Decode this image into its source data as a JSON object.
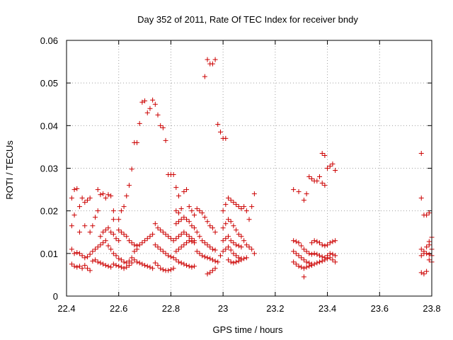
{
  "chart_data": {
    "type": "scatter",
    "title": "Day 352 of 2011, Rate Of TEC Index for receiver bndy",
    "xlabel": "GPS time / hours",
    "ylabel": "ROTI / TECUs",
    "xlim": [
      22.4,
      23.8
    ],
    "ylim": [
      0,
      0.06
    ],
    "x_ticks": [
      "22.4",
      "22.6",
      "22.8",
      "23",
      "23.2",
      "23.4",
      "23.6",
      "23.8"
    ],
    "y_ticks": [
      "0",
      "0.01",
      "0.02",
      "0.03",
      "0.04",
      "0.05",
      "0.06"
    ],
    "grid": true,
    "marker": "+",
    "series_color": "#cc0000",
    "points": [
      [
        22.42,
        0.023
      ],
      [
        22.43,
        0.025
      ],
      [
        22.44,
        0.0252
      ],
      [
        22.45,
        0.021
      ],
      [
        22.46,
        0.023
      ],
      [
        22.47,
        0.022
      ],
      [
        22.48,
        0.0225
      ],
      [
        22.49,
        0.023
      ],
      [
        22.42,
        0.0165
      ],
      [
        22.43,
        0.019
      ],
      [
        22.45,
        0.015
      ],
      [
        22.47,
        0.0165
      ],
      [
        22.49,
        0.015
      ],
      [
        22.5,
        0.0165
      ],
      [
        22.51,
        0.0185
      ],
      [
        22.52,
        0.02
      ],
      [
        22.42,
        0.011
      ],
      [
        22.43,
        0.01
      ],
      [
        22.44,
        0.0102
      ],
      [
        22.45,
        0.01
      ],
      [
        22.46,
        0.0095
      ],
      [
        22.47,
        0.009
      ],
      [
        22.48,
        0.0092
      ],
      [
        22.49,
        0.0098
      ],
      [
        22.5,
        0.0105
      ],
      [
        22.51,
        0.011
      ],
      [
        22.52,
        0.0115
      ],
      [
        22.53,
        0.012
      ],
      [
        22.54,
        0.0125
      ],
      [
        22.55,
        0.013
      ],
      [
        22.56,
        0.0118
      ],
      [
        22.57,
        0.011
      ],
      [
        22.42,
        0.0075
      ],
      [
        22.43,
        0.007
      ],
      [
        22.44,
        0.0068
      ],
      [
        22.45,
        0.007
      ],
      [
        22.46,
        0.0065
      ],
      [
        22.47,
        0.0072
      ],
      [
        22.48,
        0.0065
      ],
      [
        22.49,
        0.006
      ],
      [
        22.5,
        0.0082
      ],
      [
        22.51,
        0.0085
      ],
      [
        22.52,
        0.008
      ],
      [
        22.53,
        0.0078
      ],
      [
        22.54,
        0.0075
      ],
      [
        22.55,
        0.0072
      ],
      [
        22.56,
        0.007
      ],
      [
        22.57,
        0.0068
      ],
      [
        22.52,
        0.025
      ],
      [
        22.53,
        0.0238
      ],
      [
        22.54,
        0.024
      ],
      [
        22.55,
        0.023
      ],
      [
        22.56,
        0.0238
      ],
      [
        22.57,
        0.0235
      ],
      [
        22.58,
        0.02
      ],
      [
        22.58,
        0.018
      ],
      [
        22.53,
        0.014
      ],
      [
        22.54,
        0.015
      ],
      [
        22.55,
        0.0155
      ],
      [
        22.56,
        0.016
      ],
      [
        22.57,
        0.015
      ],
      [
        22.58,
        0.0145
      ],
      [
        22.59,
        0.0135
      ],
      [
        22.6,
        0.013
      ],
      [
        22.58,
        0.01
      ],
      [
        22.59,
        0.0095
      ],
      [
        22.6,
        0.0088
      ],
      [
        22.61,
        0.0085
      ],
      [
        22.62,
        0.008
      ],
      [
        22.63,
        0.0078
      ],
      [
        22.64,
        0.0082
      ],
      [
        22.65,
        0.009
      ],
      [
        22.58,
        0.0075
      ],
      [
        22.59,
        0.0072
      ],
      [
        22.6,
        0.007
      ],
      [
        22.61,
        0.0068
      ],
      [
        22.62,
        0.0065
      ],
      [
        22.63,
        0.0068
      ],
      [
        22.64,
        0.0072
      ],
      [
        22.65,
        0.0078
      ],
      [
        22.6,
        0.018
      ],
      [
        22.61,
        0.02
      ],
      [
        22.62,
        0.021
      ],
      [
        22.63,
        0.0235
      ],
      [
        22.64,
        0.026
      ],
      [
        22.65,
        0.0298
      ],
      [
        22.66,
        0.036
      ],
      [
        22.67,
        0.036
      ],
      [
        22.6,
        0.0155
      ],
      [
        22.61,
        0.015
      ],
      [
        22.62,
        0.0145
      ],
      [
        22.63,
        0.014
      ],
      [
        22.64,
        0.013
      ],
      [
        22.65,
        0.0125
      ],
      [
        22.66,
        0.012
      ],
      [
        22.67,
        0.0118
      ],
      [
        22.66,
        0.0105
      ],
      [
        22.67,
        0.011
      ],
      [
        22.68,
        0.012
      ],
      [
        22.69,
        0.0125
      ],
      [
        22.7,
        0.013
      ],
      [
        22.71,
        0.0135
      ],
      [
        22.72,
        0.014
      ],
      [
        22.73,
        0.0145
      ],
      [
        22.66,
        0.0085
      ],
      [
        22.67,
        0.008
      ],
      [
        22.68,
        0.0078
      ],
      [
        22.69,
        0.0075
      ],
      [
        22.7,
        0.0072
      ],
      [
        22.71,
        0.007
      ],
      [
        22.72,
        0.0068
      ],
      [
        22.73,
        0.0065
      ],
      [
        22.68,
        0.0405
      ],
      [
        22.69,
        0.0455
      ],
      [
        22.7,
        0.0458
      ],
      [
        22.71,
        0.043
      ],
      [
        22.72,
        0.044
      ],
      [
        22.73,
        0.046
      ],
      [
        22.74,
        0.045
      ],
      [
        22.75,
        0.0425
      ],
      [
        22.76,
        0.04
      ],
      [
        22.77,
        0.0395
      ],
      [
        22.78,
        0.0365
      ],
      [
        22.79,
        0.0285
      ],
      [
        22.8,
        0.0285
      ],
      [
        22.81,
        0.0285
      ],
      [
        22.82,
        0.0255
      ],
      [
        22.83,
        0.0235
      ],
      [
        22.74,
        0.017
      ],
      [
        22.75,
        0.016
      ],
      [
        22.76,
        0.0155
      ],
      [
        22.77,
        0.015
      ],
      [
        22.78,
        0.0145
      ],
      [
        22.79,
        0.014
      ],
      [
        22.8,
        0.0135
      ],
      [
        22.81,
        0.013
      ],
      [
        22.74,
        0.012
      ],
      [
        22.75,
        0.0115
      ],
      [
        22.76,
        0.011
      ],
      [
        22.77,
        0.0105
      ],
      [
        22.78,
        0.01
      ],
      [
        22.79,
        0.0095
      ],
      [
        22.8,
        0.0092
      ],
      [
        22.81,
        0.009
      ],
      [
        22.74,
        0.0078
      ],
      [
        22.75,
        0.0072
      ],
      [
        22.76,
        0.0065
      ],
      [
        22.77,
        0.0062
      ],
      [
        22.78,
        0.006
      ],
      [
        22.79,
        0.006
      ],
      [
        22.8,
        0.0062
      ],
      [
        22.81,
        0.0065
      ],
      [
        22.82,
        0.02
      ],
      [
        22.83,
        0.0195
      ],
      [
        22.84,
        0.0205
      ],
      [
        22.85,
        0.0245
      ],
      [
        22.86,
        0.025
      ],
      [
        22.87,
        0.021
      ],
      [
        22.88,
        0.02
      ],
      [
        22.89,
        0.019
      ],
      [
        22.82,
        0.017
      ],
      [
        22.83,
        0.0175
      ],
      [
        22.84,
        0.018
      ],
      [
        22.85,
        0.0185
      ],
      [
        22.86,
        0.018
      ],
      [
        22.87,
        0.0175
      ],
      [
        22.88,
        0.0165
      ],
      [
        22.89,
        0.016
      ],
      [
        22.82,
        0.0135
      ],
      [
        22.83,
        0.014
      ],
      [
        22.84,
        0.0145
      ],
      [
        22.85,
        0.015
      ],
      [
        22.86,
        0.0145
      ],
      [
        22.87,
        0.014
      ],
      [
        22.88,
        0.0135
      ],
      [
        22.89,
        0.013
      ],
      [
        22.82,
        0.0105
      ],
      [
        22.83,
        0.011
      ],
      [
        22.84,
        0.0115
      ],
      [
        22.85,
        0.012
      ],
      [
        22.86,
        0.0125
      ],
      [
        22.87,
        0.013
      ],
      [
        22.88,
        0.0128
      ],
      [
        22.89,
        0.0125
      ],
      [
        22.82,
        0.0085
      ],
      [
        22.83,
        0.008
      ],
      [
        22.84,
        0.0078
      ],
      [
        22.85,
        0.0075
      ],
      [
        22.86,
        0.0072
      ],
      [
        22.87,
        0.007
      ],
      [
        22.88,
        0.0068
      ],
      [
        22.89,
        0.007
      ],
      [
        22.9,
        0.0205
      ],
      [
        22.91,
        0.02
      ],
      [
        22.92,
        0.0195
      ],
      [
        22.93,
        0.0185
      ],
      [
        22.94,
        0.0175
      ],
      [
        22.95,
        0.0165
      ],
      [
        22.96,
        0.016
      ],
      [
        22.97,
        0.015
      ],
      [
        22.9,
        0.015
      ],
      [
        22.91,
        0.014
      ],
      [
        22.92,
        0.013
      ],
      [
        22.93,
        0.0125
      ],
      [
        22.94,
        0.012
      ],
      [
        22.95,
        0.0115
      ],
      [
        22.96,
        0.011
      ],
      [
        22.97,
        0.0108
      ],
      [
        22.9,
        0.0105
      ],
      [
        22.91,
        0.01
      ],
      [
        22.92,
        0.0095
      ],
      [
        22.93,
        0.0092
      ],
      [
        22.94,
        0.009
      ],
      [
        22.95,
        0.0088
      ],
      [
        22.96,
        0.0085
      ],
      [
        22.97,
        0.0082
      ],
      [
        22.93,
        0.0515
      ],
      [
        22.94,
        0.0555
      ],
      [
        22.95,
        0.0545
      ],
      [
        22.96,
        0.0545
      ],
      [
        22.97,
        0.0555
      ],
      [
        22.98,
        0.0403
      ],
      [
        22.99,
        0.0385
      ],
      [
        23.0,
        0.037
      ],
      [
        23.01,
        0.037
      ],
      [
        22.94,
        0.0052
      ],
      [
        22.95,
        0.0055
      ],
      [
        22.96,
        0.006
      ],
      [
        22.97,
        0.0065
      ],
      [
        22.98,
        0.008
      ],
      [
        22.99,
        0.0095
      ],
      [
        23.0,
        0.02
      ],
      [
        23.01,
        0.0215
      ],
      [
        23.02,
        0.023
      ],
      [
        23.03,
        0.0225
      ],
      [
        23.04,
        0.022
      ],
      [
        23.05,
        0.0215
      ],
      [
        23.06,
        0.021
      ],
      [
        23.07,
        0.0205
      ],
      [
        23.0,
        0.016
      ],
      [
        23.01,
        0.017
      ],
      [
        23.02,
        0.018
      ],
      [
        23.03,
        0.0175
      ],
      [
        23.04,
        0.0165
      ],
      [
        23.05,
        0.0155
      ],
      [
        23.06,
        0.0145
      ],
      [
        23.07,
        0.014
      ],
      [
        23.0,
        0.013
      ],
      [
        23.01,
        0.0135
      ],
      [
        23.02,
        0.014
      ],
      [
        23.03,
        0.013
      ],
      [
        23.04,
        0.0125
      ],
      [
        23.05,
        0.012
      ],
      [
        23.06,
        0.0118
      ],
      [
        23.07,
        0.0115
      ],
      [
        23.0,
        0.0105
      ],
      [
        23.01,
        0.011
      ],
      [
        23.02,
        0.0115
      ],
      [
        23.03,
        0.0108
      ],
      [
        23.04,
        0.01
      ],
      [
        23.05,
        0.0095
      ],
      [
        23.06,
        0.009
      ],
      [
        23.07,
        0.0088
      ],
      [
        23.02,
        0.0085
      ],
      [
        23.03,
        0.008
      ],
      [
        23.04,
        0.0078
      ],
      [
        23.05,
        0.008
      ],
      [
        23.06,
        0.0082
      ],
      [
        23.07,
        0.0085
      ],
      [
        23.08,
        0.0088
      ],
      [
        23.09,
        0.009
      ],
      [
        23.08,
        0.021
      ],
      [
        23.09,
        0.02
      ],
      [
        23.1,
        0.018
      ],
      [
        23.11,
        0.021
      ],
      [
        23.12,
        0.024
      ],
      [
        23.08,
        0.013
      ],
      [
        23.09,
        0.012
      ],
      [
        23.1,
        0.0115
      ],
      [
        23.11,
        0.011
      ],
      [
        23.12,
        0.01
      ],
      [
        23.27,
        0.025
      ],
      [
        23.29,
        0.0245
      ],
      [
        23.31,
        0.0225
      ],
      [
        23.32,
        0.024
      ],
      [
        23.33,
        0.028
      ],
      [
        23.34,
        0.0275
      ],
      [
        23.35,
        0.027
      ],
      [
        23.36,
        0.027
      ],
      [
        23.37,
        0.028
      ],
      [
        23.38,
        0.0265
      ],
      [
        23.39,
        0.026
      ],
      [
        23.38,
        0.0335
      ],
      [
        23.39,
        0.033
      ],
      [
        23.4,
        0.03
      ],
      [
        23.41,
        0.0305
      ],
      [
        23.42,
        0.031
      ],
      [
        23.43,
        0.0295
      ],
      [
        23.27,
        0.013
      ],
      [
        23.28,
        0.0128
      ],
      [
        23.29,
        0.0125
      ],
      [
        23.3,
        0.0118
      ],
      [
        23.31,
        0.011
      ],
      [
        23.32,
        0.0105
      ],
      [
        23.33,
        0.01
      ],
      [
        23.34,
        0.0098
      ],
      [
        23.27,
        0.0105
      ],
      [
        23.28,
        0.01
      ],
      [
        23.29,
        0.0095
      ],
      [
        23.3,
        0.009
      ],
      [
        23.31,
        0.0085
      ],
      [
        23.32,
        0.008
      ],
      [
        23.33,
        0.0078
      ],
      [
        23.34,
        0.0075
      ],
      [
        23.27,
        0.008
      ],
      [
        23.28,
        0.0075
      ],
      [
        23.29,
        0.007
      ],
      [
        23.3,
        0.0068
      ],
      [
        23.31,
        0.0065
      ],
      [
        23.32,
        0.0068
      ],
      [
        23.33,
        0.007
      ],
      [
        23.34,
        0.0072
      ],
      [
        23.31,
        0.0045
      ],
      [
        23.34,
        0.0125
      ],
      [
        23.35,
        0.013
      ],
      [
        23.36,
        0.0128
      ],
      [
        23.37,
        0.0125
      ],
      [
        23.38,
        0.012
      ],
      [
        23.39,
        0.0118
      ],
      [
        23.4,
        0.012
      ],
      [
        23.41,
        0.0125
      ],
      [
        23.42,
        0.0128
      ],
      [
        23.43,
        0.013
      ],
      [
        23.35,
        0.01
      ],
      [
        23.36,
        0.0098
      ],
      [
        23.37,
        0.0095
      ],
      [
        23.38,
        0.0092
      ],
      [
        23.39,
        0.009
      ],
      [
        23.4,
        0.0095
      ],
      [
        23.41,
        0.01
      ],
      [
        23.42,
        0.0098
      ],
      [
        23.43,
        0.0095
      ],
      [
        23.35,
        0.0075
      ],
      [
        23.36,
        0.0078
      ],
      [
        23.37,
        0.008
      ],
      [
        23.38,
        0.0082
      ],
      [
        23.39,
        0.0085
      ],
      [
        23.4,
        0.0088
      ],
      [
        23.41,
        0.009
      ],
      [
        23.42,
        0.0085
      ],
      [
        23.43,
        0.008
      ],
      [
        23.76,
        0.0335
      ],
      [
        23.76,
        0.023
      ],
      [
        23.77,
        0.019
      ],
      [
        23.78,
        0.019
      ],
      [
        23.79,
        0.0195
      ],
      [
        23.79,
        0.0128
      ],
      [
        23.8,
        0.0138
      ],
      [
        23.76,
        0.011
      ],
      [
        23.77,
        0.0105
      ],
      [
        23.78,
        0.01
      ],
      [
        23.79,
        0.0098
      ],
      [
        23.8,
        0.0095
      ],
      [
        23.76,
        0.0095
      ],
      [
        23.77,
        0.01
      ],
      [
        23.78,
        0.0115
      ],
      [
        23.79,
        0.012
      ],
      [
        23.8,
        0.011
      ],
      [
        23.76,
        0.0055
      ],
      [
        23.77,
        0.0052
      ],
      [
        23.78,
        0.0058
      ],
      [
        23.79,
        0.0085
      ],
      [
        23.8,
        0.008
      ]
    ]
  }
}
